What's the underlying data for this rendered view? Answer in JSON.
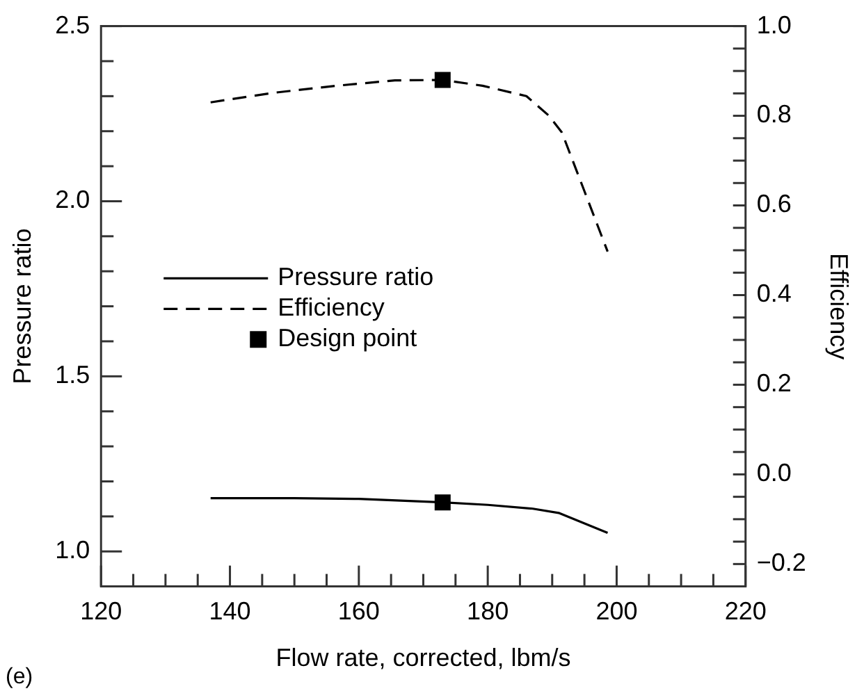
{
  "chart_data": {
    "type": "line",
    "xlabel": "Flow rate, corrected, lbm/s",
    "ylabel": "Pressure ratio",
    "y2label": "Efficiency",
    "annotations": [
      "(e)"
    ],
    "xlim": [
      120,
      220
    ],
    "xticks": [
      120,
      {
        "value": 125,
        "label": null
      },
      {
        "value": 130,
        "label": null
      },
      {
        "value": 135,
        "label": null
      },
      140,
      {
        "value": 145,
        "label": null
      },
      {
        "value": 150,
        "label": null
      },
      {
        "value": 155,
        "label": null
      },
      160,
      {
        "value": 165,
        "label": null
      },
      {
        "value": 170,
        "label": null
      },
      {
        "value": 175,
        "label": null
      },
      180,
      {
        "value": 185,
        "label": null
      },
      {
        "value": 190,
        "label": null
      },
      {
        "value": 195,
        "label": null
      },
      200,
      {
        "value": 205,
        "label": null
      },
      {
        "value": 210,
        "label": null
      },
      {
        "value": 215,
        "label": null
      },
      220
    ],
    "ylim": [
      0.9,
      2.5
    ],
    "yticks": [
      {
        "value": 1.0,
        "label": "1.0"
      },
      {
        "value": 1.1,
        "label": null
      },
      {
        "value": 1.2,
        "label": null
      },
      {
        "value": 1.3,
        "label": null
      },
      {
        "value": 1.4,
        "label": null
      },
      1.5,
      {
        "value": 1.6,
        "label": null
      },
      {
        "value": 1.7,
        "label": null
      },
      {
        "value": 1.8,
        "label": null
      },
      {
        "value": 1.9,
        "label": null
      },
      {
        "value": 2.0,
        "label": "2.0"
      },
      {
        "value": 2.1,
        "label": null
      },
      {
        "value": 2.2,
        "label": null
      },
      {
        "value": 2.3,
        "label": null
      },
      {
        "value": 2.4,
        "label": null
      },
      2.5
    ],
    "y2lim": [
      -0.25,
      1.0
    ],
    "y2ticks": [
      {
        "value": -0.2,
        "label": "−0.2"
      },
      {
        "value": -0.15,
        "label": null
      },
      {
        "value": -0.1,
        "label": null
      },
      {
        "value": -0.05,
        "label": null
      },
      {
        "value": 0,
        "label": "0.0"
      },
      {
        "value": 0.05,
        "label": null
      },
      {
        "value": 0.1,
        "label": null
      },
      {
        "value": 0.15,
        "label": null
      },
      0.2,
      {
        "value": 0.25,
        "label": null
      },
      {
        "value": 0.3,
        "label": null
      },
      {
        "value": 0.35,
        "label": null
      },
      0.4,
      {
        "value": 0.45,
        "label": null
      },
      {
        "value": 0.5,
        "label": null
      },
      {
        "value": 0.55,
        "label": null
      },
      0.6,
      {
        "value": 0.65,
        "label": null
      },
      {
        "value": 0.7,
        "label": null
      },
      {
        "value": 0.75,
        "label": null
      },
      0.8,
      {
        "value": 0.85,
        "label": null
      },
      {
        "value": 0.9,
        "label": null
      },
      {
        "value": 0.95,
        "label": null
      },
      {
        "value": 1.0,
        "label": "1.0"
      }
    ],
    "grid": false,
    "legend": "left",
    "series": [
      {
        "name": "Pressure ratio",
        "color": "#000000",
        "line_style": "solid",
        "marker": "none",
        "x": [
          137,
          150,
          160,
          173,
          180,
          187,
          191,
          198.6
        ],
        "values": [
          1.152,
          1.152,
          1.15,
          1.14,
          1.133,
          1.122,
          1.11,
          1.053
        ]
      },
      {
        "name": "Efficiency",
        "axis": "y2",
        "color": "#000000",
        "line_style": "dashed",
        "marker": "none",
        "x": [
          137,
          146.6,
          156.5,
          165.6,
          173,
          179.2,
          186,
          189.5,
          191.5,
          198.6
        ],
        "values": [
          0.83,
          0.851,
          0.867,
          0.879,
          0.88,
          0.867,
          0.844,
          0.8,
          0.763,
          0.497
        ]
      },
      {
        "name": "Design point",
        "type": "scatter",
        "color": "#000000",
        "marker": "square",
        "x": [
          173
        ],
        "values": [
          1.14
        ]
      },
      {
        "type": "scatter",
        "axis": "y2",
        "color": "#000000",
        "marker": "square",
        "x": [
          173
        ],
        "values": [
          0.88
        ]
      }
    ]
  }
}
